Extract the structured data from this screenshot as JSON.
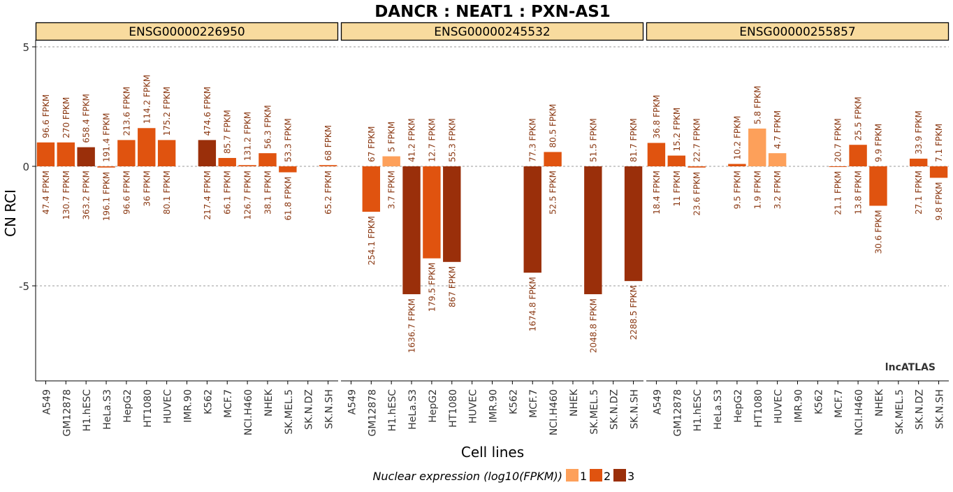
{
  "chart_data": {
    "type": "bar",
    "title": "DANCR : NEAT1 : PXN-AS1",
    "xlabel": "Cell lines",
    "ylabel": "CN RCI",
    "ylim": [
      -9,
      5.2
    ],
    "yticks": [
      5,
      0,
      -5
    ],
    "ytick_labels": [
      "5",
      "0",
      "-5"
    ],
    "grid": "dashed at y ticks",
    "watermark": "lncATLAS",
    "categories": [
      "A549",
      "GM12878",
      "H1.hESC",
      "HeLa.S3",
      "HepG2",
      "HT1080",
      "HUVEC",
      "IMR.90",
      "K562",
      "MCF.7",
      "NCI.H460",
      "NHEK",
      "SK.MEL.5",
      "SK.N.DZ",
      "SK.N.SH"
    ],
    "legend": {
      "title": "Nuclear expression (log10(FPKM))",
      "placement": "bottom",
      "items": [
        {
          "label": "1",
          "color": "#FDA05A"
        },
        {
          "label": "2",
          "color": "#E0530F"
        },
        {
          "label": "3",
          "color": "#9A2F0A"
        }
      ]
    },
    "panels": [
      {
        "name": "ENSG00000226950",
        "values": [
          1.0,
          1.0,
          0.8,
          -0.05,
          1.1,
          1.6,
          1.1,
          null,
          1.1,
          0.35,
          0.05,
          0.55,
          -0.25,
          null,
          0.05
        ],
        "level": [
          2,
          2,
          3,
          2,
          2,
          2,
          2,
          null,
          3,
          2,
          2,
          2,
          2,
          null,
          2
        ],
        "cyto_labels": [
          "96.6 FPKM",
          "270 FPKM",
          "658.4 FPKM",
          "191.4 FPKM",
          "213.6 FPKM",
          "114.2 FPKM",
          "175.2 FPKM",
          "",
          "474.6 FPKM",
          "85.7 FPKM",
          "131.2 FPKM",
          "56.3 FPKM",
          "53.3 FPKM",
          "",
          "68 FPKM"
        ],
        "nuc_labels": [
          "47.4 FPKM",
          "130.7 FPKM",
          "363.2 FPKM",
          "196.1 FPKM",
          "96.6 FPKM",
          "36 FPKM",
          "80.1 FPKM",
          "",
          "217.4 FPKM",
          "66.1 FPKM",
          "126.7 FPKM",
          "38.1 FPKM",
          "61.8 FPKM",
          "",
          "65.2 FPKM"
        ]
      },
      {
        "name": "ENSG00000245532",
        "values": [
          null,
          -1.9,
          0.42,
          -5.35,
          -3.85,
          -4.0,
          null,
          null,
          null,
          -4.45,
          0.6,
          null,
          -5.35,
          null,
          -4.8
        ],
        "level": [
          null,
          2,
          1,
          3,
          2,
          3,
          null,
          null,
          null,
          3,
          2,
          null,
          3,
          null,
          3
        ],
        "cyto_labels": [
          "",
          "67 FPKM",
          "5 FPKM",
          "41.2 FPKM",
          "12.7 FPKM",
          "55.3 FPKM",
          "",
          "",
          "",
          "77.3 FPKM",
          "80.5 FPKM",
          "",
          "51.5 FPKM",
          "",
          "81.7 FPKM"
        ],
        "nuc_labels": [
          "",
          "254.1 FPKM",
          "3.7 FPKM",
          "1636.7 FPKM",
          "179.5 FPKM",
          "867 FPKM",
          "",
          "",
          "",
          "1674.8 FPKM",
          "52.5 FPKM",
          "",
          "2048.8 FPKM",
          "",
          "2288.5 FPKM"
        ]
      },
      {
        "name": "ENSG00000255857",
        "values": [
          0.98,
          0.45,
          -0.05,
          null,
          0.1,
          1.58,
          0.55,
          null,
          null,
          -0.02,
          0.9,
          -1.65,
          null,
          0.32,
          -0.48
        ],
        "level": [
          2,
          2,
          2,
          null,
          2,
          1,
          1,
          null,
          null,
          2,
          2,
          2,
          null,
          2,
          2
        ],
        "cyto_labels": [
          "36.8 FPKM",
          "15.2 FPKM",
          "22.7 FPKM",
          "",
          "10.2 FPKM",
          "5.8 FPKM",
          "4.7 FPKM",
          "",
          "",
          "20.7 FPKM",
          "25.5 FPKM",
          "9.9 FPKM",
          "",
          "33.9 FPKM",
          "7.1 FPKM"
        ],
        "nuc_labels": [
          "18.4 FPKM",
          "11 FPKM",
          "23.6 FPKM",
          "",
          "9.5 FPKM",
          "1.9 FPKM",
          "3.2 FPKM",
          "",
          "",
          "21.1 FPKM",
          "13.8 FPKM",
          "30.6 FPKM",
          "",
          "27.1 FPKM",
          "9.8 FPKM"
        ]
      }
    ]
  }
}
